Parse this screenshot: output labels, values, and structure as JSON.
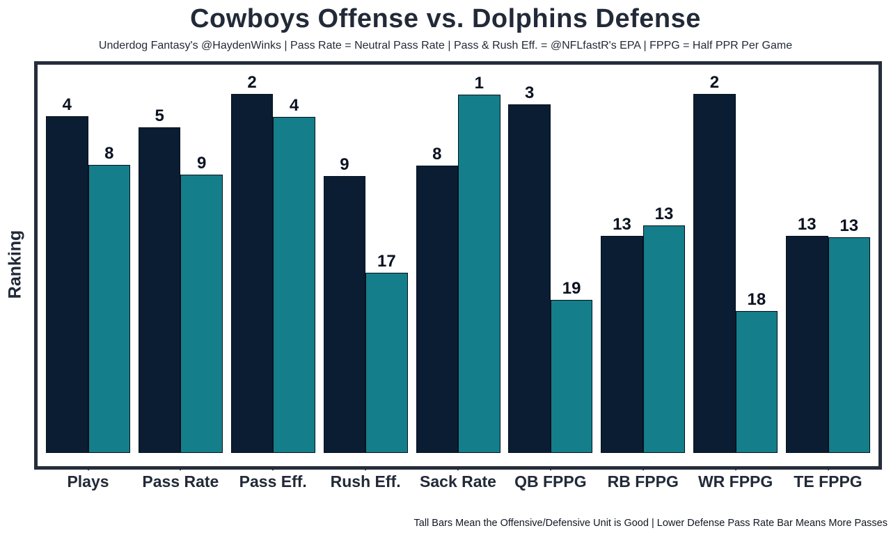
{
  "chart_data": {
    "type": "bar",
    "title": "Cowboys Offense vs. Dolphins Defense",
    "subtitle": "Underdog Fantasy's @HaydenWinks | Pass Rate = Neutral Pass Rate | Pass & Rush Eff. = @NFLfastR's EPA | FPPG = Half PPR Per Game",
    "ylabel": "Ranking",
    "caption": "Tall Bars Mean the Offensive/Defensive Unit is Good | Lower Defense Pass Rate Bar Means More Passes",
    "categories": [
      "Plays",
      "Pass Rate",
      "Pass Eff.",
      "Rush Eff.",
      "Sack Rate",
      "QB FPPG",
      "RB FPPG",
      "WR FPPG",
      "TE FPPG"
    ],
    "legend_position": "none",
    "grid": false,
    "y_axis_ticks": "none",
    "value_meaning": "NFL rank printed above each bar; taller bar = better unit",
    "series": [
      {
        "name": "Cowboys Offense (dark navy bars)",
        "color": "#0a1d33",
        "ranks": [
          4,
          5,
          2,
          9,
          8,
          3,
          13,
          2,
          13
        ],
        "height_pct": [
          86.8,
          83.9,
          92.4,
          71.4,
          74.1,
          89.7,
          55.9,
          92.4,
          56.0
        ]
      },
      {
        "name": "Dolphins Defense (teal bars)",
        "color": "#147e8a",
        "ranks": [
          8,
          9,
          4,
          17,
          1,
          19,
          13,
          18,
          13
        ],
        "height_pct": [
          74.2,
          71.6,
          86.6,
          46.5,
          92.3,
          39.4,
          58.6,
          36.6,
          55.6
        ]
      }
    ]
  }
}
